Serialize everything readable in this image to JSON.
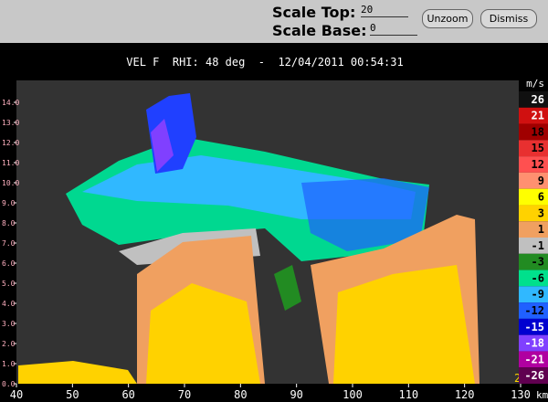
{
  "controls": {
    "scale_top_label": "Scale Top:",
    "scale_top_value": "20",
    "scale_base_label": "Scale Base:",
    "scale_base_value": "0",
    "unzoom": "Unzoom",
    "dismiss": "Dismiss"
  },
  "display": {
    "title": "VEL F  RHI: 48 deg  -  12/04/2011 00:54:31",
    "xlim": [
      40,
      130
    ],
    "xticks": [
      40,
      50,
      60,
      70,
      80,
      90,
      100,
      110,
      120,
      130
    ],
    "x_unit": "km",
    "ylim": [
      0,
      15
    ],
    "yticks": [
      {
        "value": 0,
        "label": "0.0"
      },
      {
        "value": 1,
        "label": "1.0"
      },
      {
        "value": 2,
        "label": "2.0"
      },
      {
        "value": 3,
        "label": "3.0"
      },
      {
        "value": 4,
        "label": "4.0"
      },
      {
        "value": 5,
        "label": "5.0"
      },
      {
        "value": 6,
        "label": "6.0"
      },
      {
        "value": 7,
        "label": "7.0"
      },
      {
        "value": 8,
        "label": "8.0"
      },
      {
        "value": 9,
        "label": "9.0"
      },
      {
        "value": 10,
        "label": "10.0"
      },
      {
        "value": 11,
        "label": "11.0"
      },
      {
        "value": 12,
        "label": "12.0"
      },
      {
        "value": 13,
        "label": "13.0"
      },
      {
        "value": 14,
        "label": "14.0"
      }
    ],
    "corner_label": "2",
    "legend": {
      "unit": "m/s",
      "entries": [
        {
          "label": "26",
          "color": "#101010"
        },
        {
          "label": "21",
          "color": "#d01010"
        },
        {
          "label": "18",
          "color": "#a00000"
        },
        {
          "label": "15",
          "color": "#e83030"
        },
        {
          "label": "12",
          "color": "#ff5050"
        },
        {
          "label": "9",
          "color": "#ff9070"
        },
        {
          "label": "6",
          "color": "#ffff00"
        },
        {
          "label": "3",
          "color": "#ffd200"
        },
        {
          "label": "1",
          "color": "#f0a060"
        },
        {
          "label": "-1",
          "color": "#c0c0c0"
        },
        {
          "label": "-3",
          "color": "#228b22"
        },
        {
          "label": "-6",
          "color": "#00e08c"
        },
        {
          "label": "-9",
          "color": "#30b8ff"
        },
        {
          "label": "-12",
          "color": "#2060ff"
        },
        {
          "label": "-15",
          "color": "#0000d0"
        },
        {
          "label": "-18",
          "color": "#8040ff"
        },
        {
          "label": "-21",
          "color": "#b000a0"
        },
        {
          "label": "-26",
          "color": "#600050"
        }
      ]
    }
  }
}
